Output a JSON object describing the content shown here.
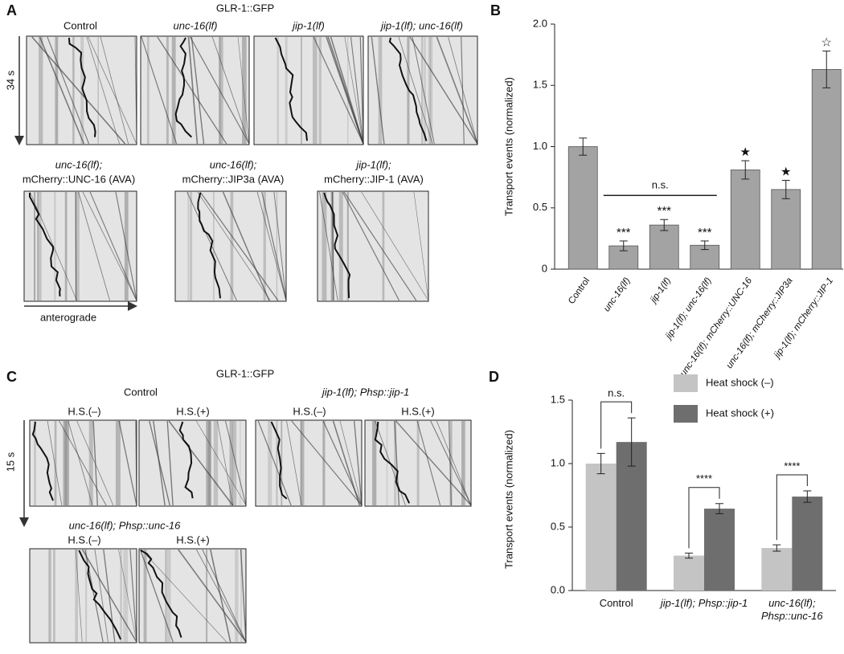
{
  "panels": {
    "A": {
      "letter": "A",
      "title": "GLR-1::GFP",
      "top_labels": [
        "Control",
        "unc-16(lf)",
        "jip-1(lf)",
        "jip-1(lf); unc-16(lf)"
      ],
      "bottom_labels": [
        [
          "unc-16(lf);",
          "mCherry::UNC-16 (AVA)"
        ],
        [
          "unc-16(lf);",
          "mCherry::JIP3a (AVA)"
        ],
        [
          "jip-1(lf);",
          "mCherry::JIP-1 (AVA)"
        ]
      ],
      "time_label": "34 s",
      "direction_label": "anterograde"
    },
    "B": {
      "letter": "B"
    },
    "C": {
      "letter": "C",
      "title": "GLR-1::GFP",
      "groups": [
        "Control",
        "jip-1(lf); Phsp::jip-1",
        "unc-16(lf); Phsp::unc-16"
      ],
      "hs_minus": "H.S.(–)",
      "hs_plus": "H.S.(+)",
      "time_label": "15 s"
    },
    "D": {
      "letter": "D"
    }
  },
  "chart_data": [
    {
      "type": "bar",
      "ylabel": "Transport events (normalized)",
      "categories": [
        "Control",
        "unc-16(lf)",
        "jip-1(lf)",
        "jip-1(lf); unc-16(lf)",
        "unc-16(lf); mCherry::UNC-16",
        "unc-16(lf); mCherry::JIP3a",
        "jip-1(lf); mCherry::JIP-1"
      ],
      "values": [
        1.0,
        0.19,
        0.36,
        0.195,
        0.81,
        0.65,
        1.63
      ],
      "errors": [
        0.07,
        0.04,
        0.045,
        0.035,
        0.075,
        0.075,
        0.15
      ],
      "bar_labels": [
        null,
        "***",
        "***",
        "***",
        "★",
        "★",
        "☆"
      ],
      "bracket_label": "n.s.",
      "color": "#a3a3a3",
      "ylim": [
        0,
        2
      ],
      "yticks": [
        0,
        0.5,
        {
          "value": 1,
          "label": "1.0"
        },
        1.5,
        {
          "value": 2,
          "label": "2.0"
        }
      ]
    },
    {
      "type": "grouped_bar",
      "ylabel": "Transport events (normalized)",
      "categories": [
        "Control",
        "jip-1(lf); Phsp::jip-1",
        "unc-16(lf); Phsp::unc-16"
      ],
      "series": [
        {
          "name": "Heat shock (–)",
          "color": "#c4c4c4",
          "values": [
            1.0,
            0.275,
            0.335
          ],
          "errors": [
            0.08,
            0.02,
            0.025
          ]
        },
        {
          "name": "Heat shock (+)",
          "color": "#6e6e6e",
          "values": [
            1.17,
            0.645,
            0.74
          ],
          "errors": [
            0.19,
            0.04,
            0.045
          ]
        }
      ],
      "bracket_labels": [
        "n.s.",
        "****",
        "****"
      ],
      "ylim": [
        0,
        1.5
      ],
      "yticks": [
        {
          "value": 0,
          "label": "0.0"
        },
        0.5,
        {
          "value": 1,
          "label": "1.0"
        },
        1.5
      ]
    }
  ]
}
